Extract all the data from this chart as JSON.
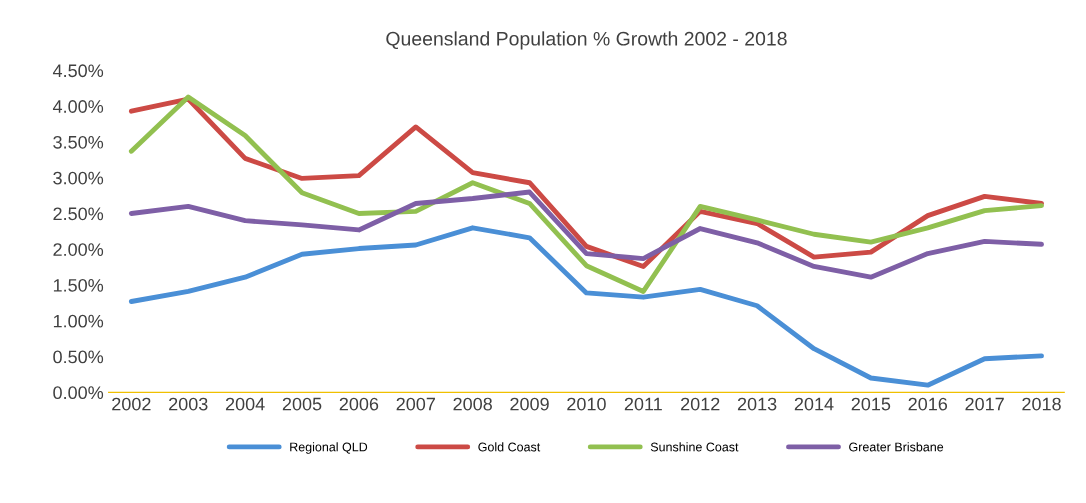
{
  "chart_data": {
    "type": "line",
    "title": "Queensland Population % Growth 2002 - 2018",
    "categories": [
      "2002",
      "2003",
      "2004",
      "2005",
      "2006",
      "2007",
      "2008",
      "2009",
      "2010",
      "2011",
      "2012",
      "2013",
      "2014",
      "2015",
      "2016",
      "2017",
      "2018"
    ],
    "series": [
      {
        "name": "Regional QLD",
        "color": "#4a8fd6",
        "values": [
          1.27,
          1.41,
          1.61,
          1.93,
          2.01,
          2.06,
          2.3,
          2.16,
          1.39,
          1.33,
          1.44,
          1.21,
          0.61,
          0.2,
          0.1,
          0.47,
          0.51
        ]
      },
      {
        "name": "Gold Coast",
        "color": "#cc4a45",
        "values": [
          3.93,
          4.1,
          3.27,
          2.99,
          3.03,
          3.71,
          3.07,
          2.93,
          2.04,
          1.76,
          2.53,
          2.36,
          1.89,
          1.96,
          2.47,
          2.74,
          2.64
        ]
      },
      {
        "name": "Sunshine Coast",
        "color": "#92c050",
        "values": [
          3.37,
          4.13,
          3.59,
          2.79,
          2.5,
          2.53,
          2.93,
          2.64,
          1.77,
          1.41,
          2.6,
          2.41,
          2.21,
          2.1,
          2.3,
          2.54,
          2.61
        ]
      },
      {
        "name": "Greater Brisbane",
        "color": "#7e5fa6",
        "values": [
          2.5,
          2.6,
          2.4,
          2.34,
          2.27,
          2.64,
          2.71,
          2.8,
          1.94,
          1.87,
          2.29,
          2.09,
          1.76,
          1.61,
          1.94,
          2.11,
          2.07
        ]
      }
    ],
    "ylim": [
      0,
      4.5
    ],
    "yticks": [
      {
        "value": 0,
        "label": "0.00%"
      },
      {
        "value": 0.5,
        "label": "0.50%"
      },
      {
        "value": 1,
        "label": "1.00%"
      },
      {
        "value": 1.5,
        "label": "1.50%"
      },
      {
        "value": 2,
        "label": "2.00%"
      },
      {
        "value": 2.5,
        "label": "2.50%"
      },
      {
        "value": 3,
        "label": "3.00%"
      },
      {
        "value": 3.5,
        "label": "3.50%"
      },
      {
        "value": 4,
        "label": "4.00%"
      },
      {
        "value": 4.5,
        "label": "4.50%"
      }
    ],
    "grid": false,
    "legend": "bottom",
    "marker": "none",
    "line_style": "solid"
  }
}
